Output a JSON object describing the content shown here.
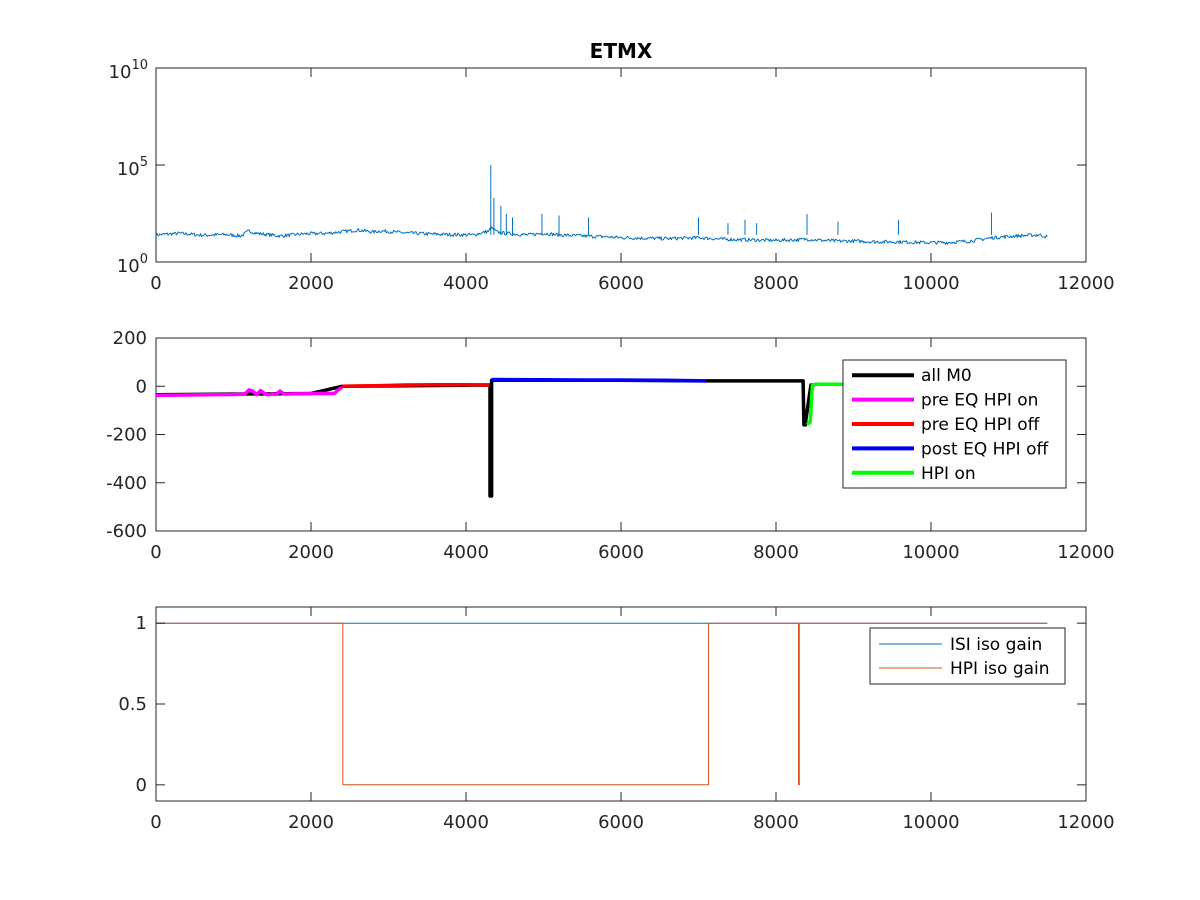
{
  "chart_data": [
    {
      "type": "line",
      "title": "ETMX",
      "xlabel": "",
      "ylabel": "",
      "yscale": "log",
      "xlim": [
        0,
        12000
      ],
      "ylim": [
        1,
        10000000000
      ],
      "xticks": [
        "0",
        "2000",
        "4000",
        "6000",
        "8000",
        "10000",
        "12000"
      ],
      "yticks": [
        {
          "base": "10",
          "exp": "0"
        },
        {
          "base": "10",
          "exp": "5"
        },
        {
          "base": "10",
          "exp": "10"
        }
      ],
      "grid": false,
      "color": "#0072bd",
      "series": [
        {
          "x": [
            0,
            300,
            600,
            900,
            1100,
            1200,
            1300,
            1600,
            1900,
            2200,
            2500,
            2600,
            2800,
            2900,
            3200,
            3500,
            3800,
            4100,
            4300,
            4320,
            4400,
            4500,
            4600,
            4800,
            5000,
            5200,
            5500,
            5800,
            6000,
            6300,
            6600,
            7000,
            7300,
            7600,
            8000,
            8300,
            8400,
            8600,
            8800,
            9000,
            9300,
            9600,
            9900,
            10200,
            10500,
            10800,
            11100,
            11400,
            11500
          ],
          "y": [
            25,
            30,
            24,
            26,
            22,
            40,
            30,
            22,
            28,
            30,
            40,
            45,
            35,
            40,
            32,
            28,
            26,
            25,
            40,
            60,
            35,
            30,
            28,
            25,
            30,
            25,
            22,
            20,
            18,
            17,
            16,
            18,
            15,
            14,
            13,
            14,
            15,
            13,
            12,
            12,
            11,
            11,
            10,
            10,
            12,
            18,
            22,
            25,
            20
          ]
        }
      ],
      "spikes": [
        {
          "x": 4320,
          "y": 100000
        },
        {
          "x": 4360,
          "y": 2000
        },
        {
          "x": 4450,
          "y": 800
        },
        {
          "x": 4520,
          "y": 300
        },
        {
          "x": 4600,
          "y": 200
        },
        {
          "x": 4980,
          "y": 300
        },
        {
          "x": 5200,
          "y": 250
        },
        {
          "x": 5580,
          "y": 200
        },
        {
          "x": 7000,
          "y": 200
        },
        {
          "x": 7380,
          "y": 100
        },
        {
          "x": 7600,
          "y": 150
        },
        {
          "x": 7750,
          "y": 100
        },
        {
          "x": 8400,
          "y": 300
        },
        {
          "x": 8800,
          "y": 120
        },
        {
          "x": 9580,
          "y": 150
        },
        {
          "x": 10780,
          "y": 350
        }
      ]
    },
    {
      "type": "line",
      "title": "",
      "xlabel": "",
      "ylabel": "",
      "xlim": [
        0,
        12000
      ],
      "ylim": [
        -600,
        200
      ],
      "xticks": [
        "0",
        "2000",
        "4000",
        "6000",
        "8000",
        "10000",
        "12000"
      ],
      "yticks": [
        "-600",
        "-400",
        "-200",
        "0",
        "200"
      ],
      "grid": false,
      "legend_position": "northeast",
      "series": [
        {
          "name": "all M0",
          "color": "#000000",
          "x": [
            0,
            2000,
            2400,
            4300,
            4310,
            4310,
            4330,
            4330,
            6000,
            7000,
            8350,
            8360,
            8380,
            8380,
            8450,
            8500
          ],
          "y": [
            -35,
            -30,
            0,
            5,
            5,
            -455,
            -455,
            25,
            25,
            22,
            22,
            -160,
            -160,
            -150,
            5,
            5
          ]
        },
        {
          "name": "pre EQ HPI on",
          "color": "#ff00ff",
          "x": [
            0,
            500,
            1000,
            1150,
            1200,
            1250,
            1300,
            1350,
            1400,
            1450,
            1500,
            1550,
            1600,
            1650,
            1700,
            2000,
            2300,
            2350,
            2400
          ],
          "y": [
            -38,
            -36,
            -34,
            -32,
            -15,
            -20,
            -35,
            -18,
            -30,
            -35,
            -32,
            -34,
            -20,
            -32,
            -32,
            -30,
            -30,
            -15,
            -5
          ]
        },
        {
          "name": "pre EQ HPI off",
          "color": "#ff0000",
          "x": [
            2400,
            2800,
            3200,
            3600,
            4000,
            4300
          ],
          "y": [
            0,
            2,
            5,
            6,
            6,
            5
          ]
        },
        {
          "name": "post EQ HPI off",
          "color": "#0000ff",
          "x": [
            4330,
            5000,
            5500,
            6000,
            6500,
            7000,
            7100
          ],
          "y": [
            28,
            27,
            26,
            26,
            25,
            23,
            22
          ]
        },
        {
          "name": "HPI on",
          "color": "#00ff00",
          "x": [
            8400,
            8420,
            8440,
            8450,
            8470,
            8500,
            9000
          ],
          "y": [
            -150,
            -155,
            -150,
            -100,
            5,
            8,
            8
          ]
        }
      ]
    },
    {
      "type": "line",
      "title": "",
      "xlabel": "",
      "ylabel": "",
      "xlim": [
        0,
        12000
      ],
      "ylim": [
        -0.1,
        1.1
      ],
      "xticks": [
        "0",
        "2000",
        "4000",
        "6000",
        "8000",
        "10000",
        "12000"
      ],
      "yticks": [
        "0",
        "0.5",
        "1"
      ],
      "grid": false,
      "legend_position": "northeast",
      "series": [
        {
          "name": "ISI iso gain",
          "color": "#0072bd",
          "x": [
            0,
            11500
          ],
          "y": [
            1,
            1
          ]
        },
        {
          "name": "HPI iso gain",
          "color": "#d95319",
          "x": [
            0,
            2410,
            2410,
            7130,
            7130,
            8290,
            8290,
            8300,
            8300,
            11500
          ],
          "y": [
            1,
            1,
            0,
            0,
            1,
            1,
            0,
            0,
            1,
            1
          ]
        }
      ]
    }
  ]
}
